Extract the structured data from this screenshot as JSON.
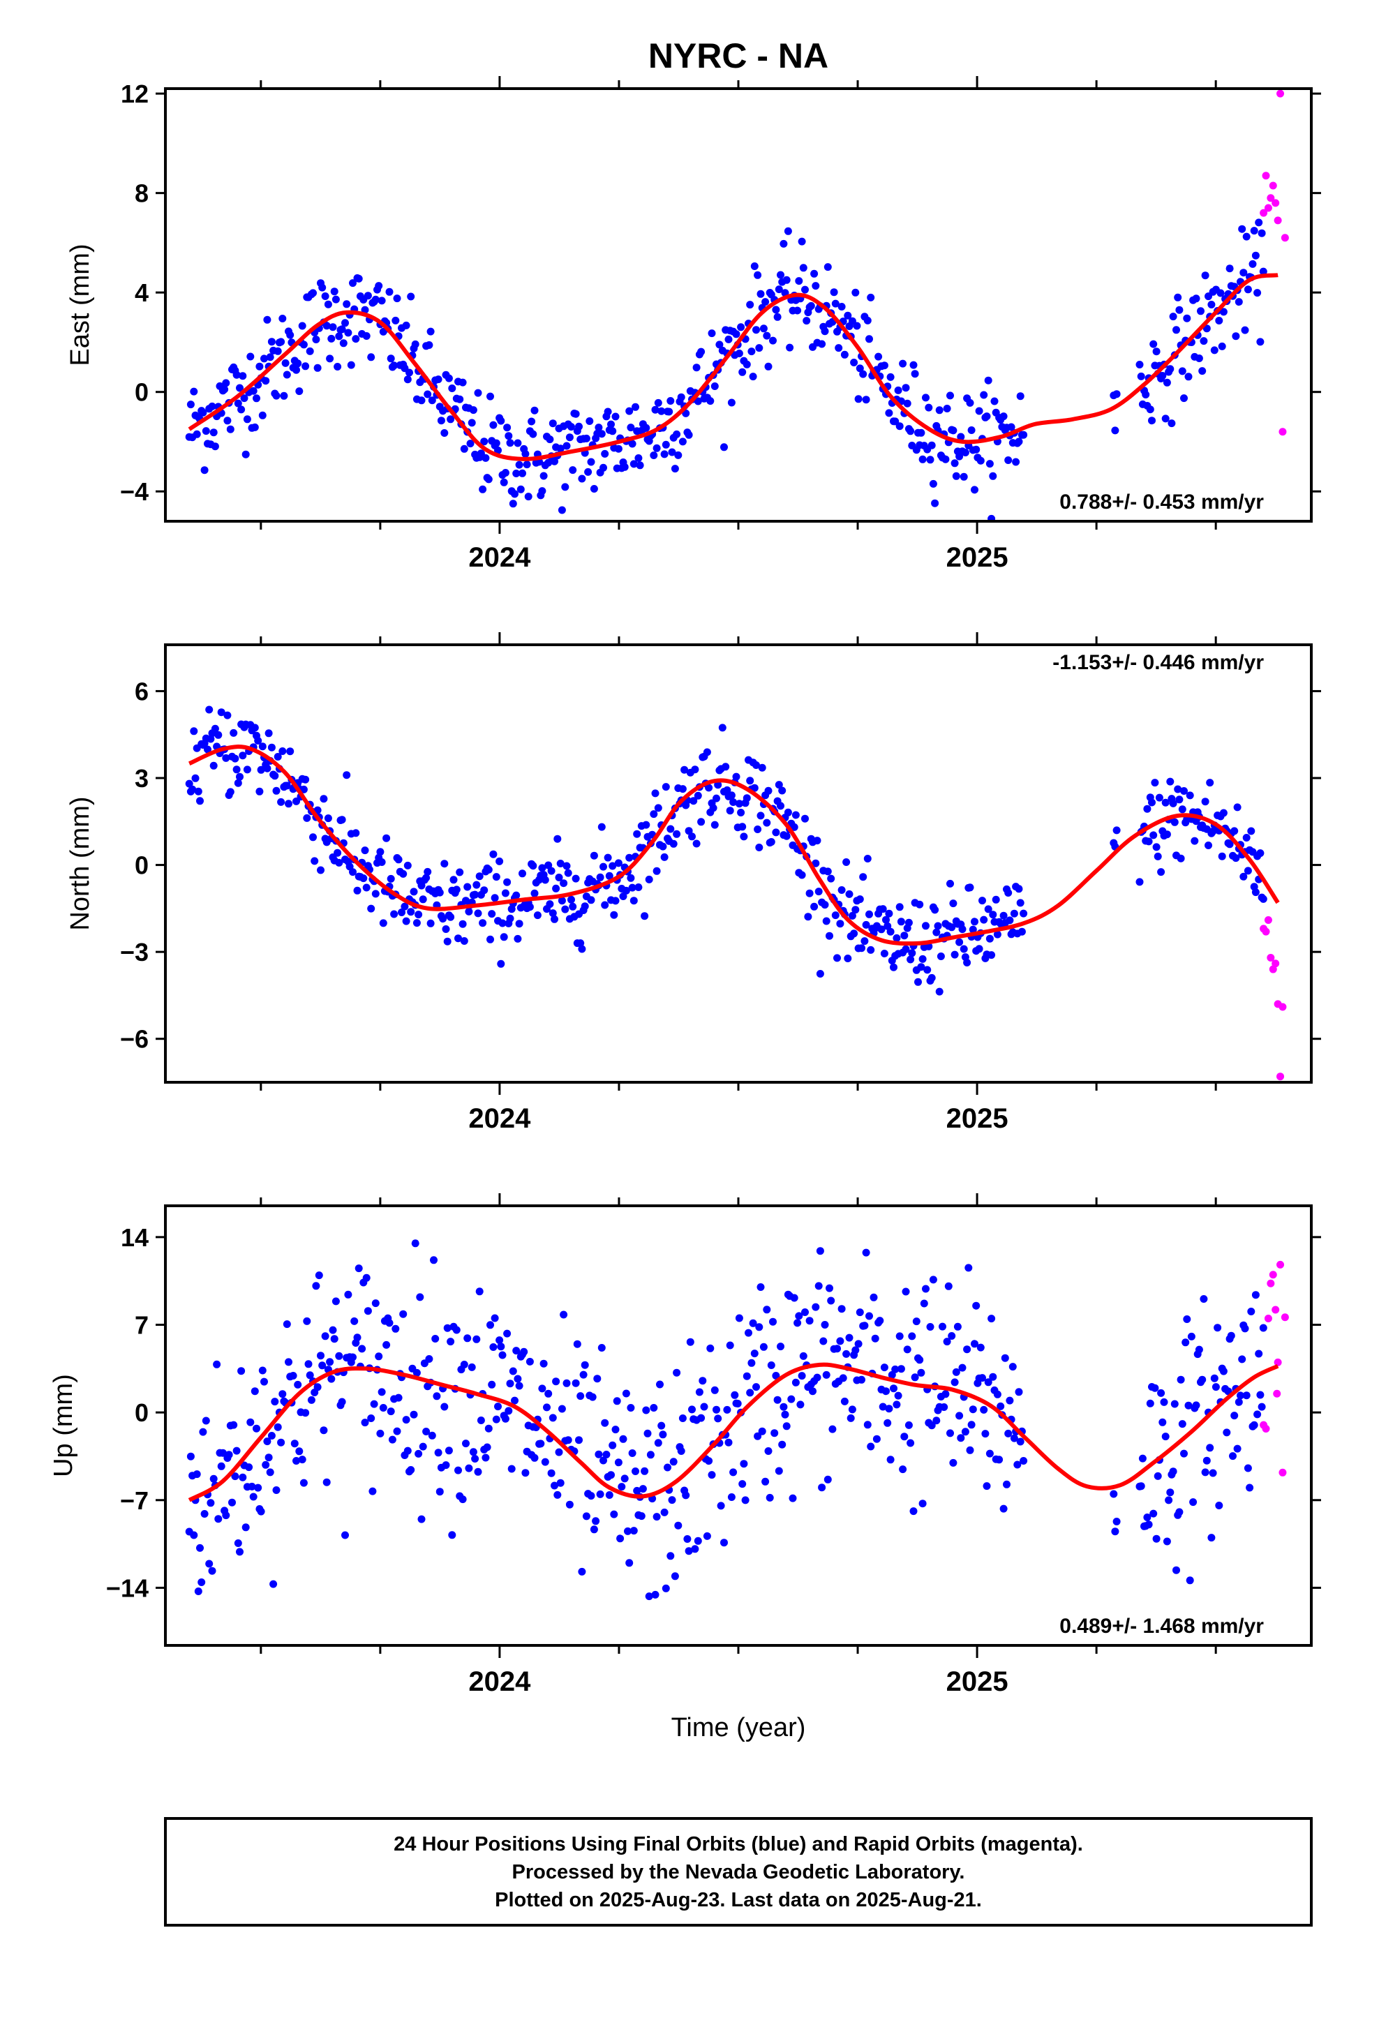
{
  "title": "NYRC - NA",
  "xlabel": "Time (year)",
  "footer": {
    "line1": "24 Hour Positions Using Final Orbits (blue) and Rapid Orbits (magenta).",
    "line2": "Processed by the Nevada Geodetic Laboratory.",
    "line3": "Plotted on 2025-Aug-23. Last data on 2025-Aug-21."
  },
  "colors": {
    "final": "#0000ff",
    "rapid": "#ff00ff",
    "fit": "#ff0000",
    "axis": "#000000"
  },
  "chart_data": [
    {
      "type": "scatter",
      "ylabel": "East (mm)",
      "rate": "0.788+/- 0.453 mm/yr",
      "rate_position": "bottom-right",
      "xlim": [
        2023.3,
        2025.7
      ],
      "ylim": [
        -5.2,
        12.2
      ],
      "yticks": [
        -4,
        0,
        4,
        8,
        12
      ],
      "xticks": [
        2024,
        2025
      ],
      "fit": [
        [
          2023.35,
          -1.5
        ],
        [
          2023.45,
          -0.2
        ],
        [
          2023.55,
          1.5
        ],
        [
          2023.62,
          2.7
        ],
        [
          2023.68,
          3.2
        ],
        [
          2023.75,
          2.8
        ],
        [
          2023.82,
          1.2
        ],
        [
          2023.9,
          -0.8
        ],
        [
          2023.97,
          -2.3
        ],
        [
          2024.05,
          -2.7
        ],
        [
          2024.15,
          -2.4
        ],
        [
          2024.25,
          -2.0
        ],
        [
          2024.33,
          -1.5
        ],
        [
          2024.4,
          -0.4
        ],
        [
          2024.48,
          1.5
        ],
        [
          2024.55,
          3.2
        ],
        [
          2024.62,
          3.9
        ],
        [
          2024.68,
          3.4
        ],
        [
          2024.75,
          1.8
        ],
        [
          2024.82,
          -0.2
        ],
        [
          2024.9,
          -1.5
        ],
        [
          2024.97,
          -2.0
        ],
        [
          2025.05,
          -1.8
        ],
        [
          2025.12,
          -1.3
        ],
        [
          2025.2,
          -1.1
        ],
        [
          2025.28,
          -0.7
        ],
        [
          2025.35,
          0.3
        ],
        [
          2025.42,
          1.6
        ],
        [
          2025.5,
          3.2
        ],
        [
          2025.57,
          4.5
        ],
        [
          2025.63,
          4.7
        ]
      ],
      "final_range": [
        2023.35,
        2025.6
      ],
      "rapid": [
        [
          2025.605,
          8.7
        ],
        [
          2025.61,
          7.4
        ],
        [
          2025.615,
          7.8
        ],
        [
          2025.62,
          8.3
        ],
        [
          2025.625,
          7.6
        ],
        [
          2025.63,
          6.9
        ],
        [
          2025.635,
          12.0
        ],
        [
          2025.64,
          -1.6
        ],
        [
          2025.645,
          6.2
        ],
        [
          2025.6,
          7.2
        ]
      ],
      "noise": 1.0
    },
    {
      "type": "scatter",
      "ylabel": "North (mm)",
      "rate": "-1.153+/- 0.446 mm/yr",
      "rate_position": "top-right",
      "xlim": [
        2023.3,
        2025.7
      ],
      "ylim": [
        -7.5,
        7.6
      ],
      "yticks": [
        -6,
        -3,
        0,
        3,
        6
      ],
      "xticks": [
        2024,
        2025
      ],
      "fit": [
        [
          2023.35,
          3.5
        ],
        [
          2023.42,
          4.0
        ],
        [
          2023.48,
          4.0
        ],
        [
          2023.55,
          3.2
        ],
        [
          2023.62,
          1.6
        ],
        [
          2023.7,
          0.1
        ],
        [
          2023.78,
          -1.0
        ],
        [
          2023.85,
          -1.5
        ],
        [
          2023.95,
          -1.4
        ],
        [
          2024.05,
          -1.2
        ],
        [
          2024.15,
          -1.0
        ],
        [
          2024.25,
          -0.4
        ],
        [
          2024.32,
          0.8
        ],
        [
          2024.38,
          2.2
        ],
        [
          2024.45,
          2.9
        ],
        [
          2024.52,
          2.6
        ],
        [
          2024.6,
          1.4
        ],
        [
          2024.67,
          -0.5
        ],
        [
          2024.73,
          -1.9
        ],
        [
          2024.8,
          -2.6
        ],
        [
          2024.88,
          -2.7
        ],
        [
          2024.95,
          -2.5
        ],
        [
          2025.02,
          -2.3
        ],
        [
          2025.1,
          -2.0
        ],
        [
          2025.17,
          -1.4
        ],
        [
          2025.25,
          -0.2
        ],
        [
          2025.33,
          1.0
        ],
        [
          2025.42,
          1.7
        ],
        [
          2025.5,
          1.4
        ],
        [
          2025.57,
          0.2
        ],
        [
          2025.63,
          -1.3
        ]
      ],
      "final_range": [
        2023.35,
        2025.6
      ],
      "rapid": [
        [
          2025.605,
          -2.3
        ],
        [
          2025.61,
          -1.9
        ],
        [
          2025.615,
          -3.2
        ],
        [
          2025.62,
          -3.6
        ],
        [
          2025.625,
          -3.4
        ],
        [
          2025.63,
          -4.8
        ],
        [
          2025.635,
          -7.3
        ],
        [
          2025.64,
          -4.9
        ],
        [
          2025.6,
          -2.2
        ]
      ],
      "noise": 0.8
    },
    {
      "type": "scatter",
      "ylabel": "Up (mm)",
      "rate": "0.489+/- 1.468 mm/yr",
      "rate_position": "bottom-right",
      "xlim": [
        2023.3,
        2025.7
      ],
      "ylim": [
        -18.6,
        16.5
      ],
      "yticks": [
        -14,
        -7,
        0,
        7,
        14
      ],
      "xticks": [
        2024,
        2025
      ],
      "fit": [
        [
          2023.35,
          -7.0
        ],
        [
          2023.42,
          -5.5
        ],
        [
          2023.5,
          -2.0
        ],
        [
          2023.58,
          1.5
        ],
        [
          2023.65,
          3.2
        ],
        [
          2023.72,
          3.5
        ],
        [
          2023.8,
          3.0
        ],
        [
          2023.88,
          2.2
        ],
        [
          2023.95,
          1.5
        ],
        [
          2024.03,
          0.5
        ],
        [
          2024.1,
          -1.5
        ],
        [
          2024.17,
          -4.0
        ],
        [
          2024.23,
          -6.0
        ],
        [
          2024.3,
          -6.7
        ],
        [
          2024.37,
          -5.5
        ],
        [
          2024.45,
          -2.5
        ],
        [
          2024.52,
          0.5
        ],
        [
          2024.6,
          3.0
        ],
        [
          2024.67,
          3.8
        ],
        [
          2024.73,
          3.5
        ],
        [
          2024.8,
          2.8
        ],
        [
          2024.87,
          2.2
        ],
        [
          2024.95,
          1.8
        ],
        [
          2025.03,
          0.5
        ],
        [
          2025.1,
          -2.0
        ],
        [
          2025.17,
          -4.5
        ],
        [
          2025.23,
          -5.9
        ],
        [
          2025.3,
          -5.8
        ],
        [
          2025.37,
          -4.0
        ],
        [
          2025.45,
          -1.5
        ],
        [
          2025.52,
          1.0
        ],
        [
          2025.58,
          2.8
        ],
        [
          2025.63,
          3.7
        ]
      ],
      "final_range": [
        2023.35,
        2025.6
      ],
      "rapid": [
        [
          2025.605,
          -1.3
        ],
        [
          2025.61,
          7.5
        ],
        [
          2025.615,
          10.3
        ],
        [
          2025.62,
          11.0
        ],
        [
          2025.625,
          8.2
        ],
        [
          2025.63,
          4.0
        ],
        [
          2025.635,
          11.8
        ],
        [
          2025.64,
          -4.8
        ],
        [
          2025.645,
          7.6
        ],
        [
          2025.6,
          -1.0
        ],
        [
          2025.628,
          1.5
        ]
      ],
      "noise": 4.5
    }
  ]
}
